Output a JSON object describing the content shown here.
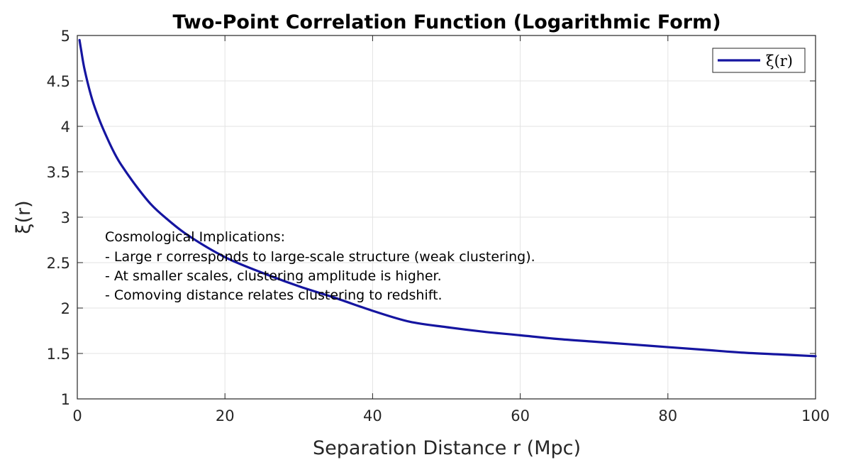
{
  "chart_data": {
    "type": "line",
    "title": "Two-Point Correlation Function (Logarithmic Form)",
    "xlabel": "Separation Distance r (Mpc)",
    "ylabel": "ξ(r)",
    "xlim": [
      0,
      100
    ],
    "ylim": [
      1,
      5
    ],
    "xticks": [
      0,
      20,
      40,
      60,
      80,
      100
    ],
    "yticks": [
      1,
      1.5,
      2,
      2.5,
      3,
      3.5,
      4,
      4.5,
      5
    ],
    "xtick_labels": [
      "0",
      "20",
      "40",
      "60",
      "80",
      "100"
    ],
    "ytick_labels": [
      "1",
      "1.5",
      "2",
      "2.5",
      "3",
      "3.5",
      "4",
      "4.5",
      "5"
    ],
    "grid": true,
    "legend_position": "top-right",
    "series": [
      {
        "name": "ξ(r)",
        "color": "#1515a0",
        "x": [
          0.3,
          0.5,
          1,
          2,
          3,
          4,
          5,
          6,
          8,
          10,
          12,
          15,
          20,
          25,
          30,
          35,
          40,
          45,
          50,
          55,
          60,
          65,
          70,
          75,
          80,
          85,
          90,
          95,
          100
        ],
        "y": [
          4.95,
          4.85,
          4.62,
          4.3,
          4.07,
          3.88,
          3.71,
          3.57,
          3.34,
          3.14,
          2.99,
          2.8,
          2.56,
          2.39,
          2.24,
          2.11,
          1.97,
          1.85,
          1.79,
          1.74,
          1.7,
          1.66,
          1.63,
          1.6,
          1.57,
          1.54,
          1.51,
          1.49,
          1.47
        ]
      }
    ],
    "annotation": {
      "lines": [
        "Cosmological Implications:",
        "- Large r corresponds to large-scale structure (weak clustering).",
        "- At smaller scales, clustering amplitude is higher.",
        "- Comoving distance relates clustering to redshift."
      ]
    }
  }
}
